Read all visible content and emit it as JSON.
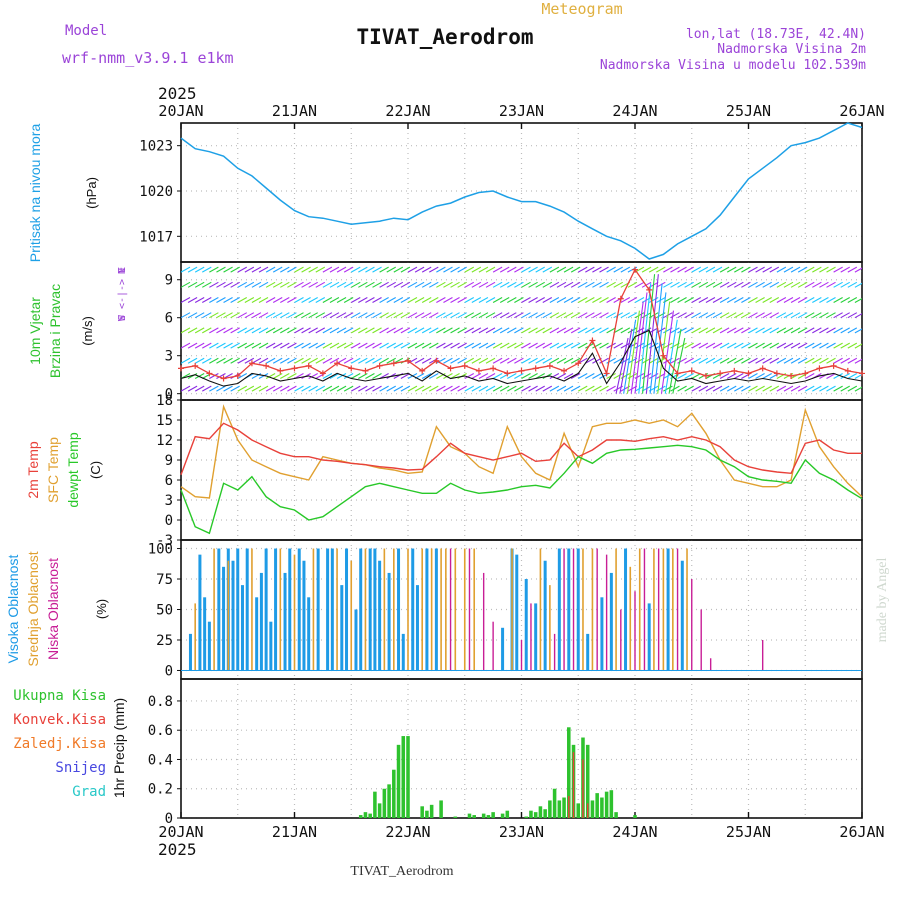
{
  "header": {
    "model_label": "Model",
    "model_name": "wrf-nmm_v3.9.1 e1km",
    "title": "TIVAT_Aerodrom",
    "meteogram": "Meteogram",
    "lonlat": "lon,lat (18.73E, 42.4N)",
    "elevation": "Nadmorska Visina 2m",
    "model_elevation": "Nadmorska Visina u modelu 102.539m",
    "year_top": "2025",
    "year_bottom": "2025",
    "footer_title": "TIVAT_Aerodrom",
    "watermark": "made by Angel"
  },
  "colors": {
    "pressure": "#1ea0e6",
    "temp2m": "#e8413a",
    "sfc_temp": "#e0a030",
    "dewpt": "#28c828",
    "precip": "#2ec22e",
    "high_cloud": "#1e9be6",
    "mid_cloud": "#e0a030",
    "low_cloud": "#c81e96",
    "label_purple": "#9b44d8"
  },
  "chart_data": [
    {
      "type": "line",
      "panel": "pressure",
      "ylabel_lines": [
        "Pritisak na nivou mora",
        "(hPa)"
      ],
      "x_ticks": [
        "20JAN",
        "21JAN",
        "22JAN",
        "23JAN",
        "24JAN",
        "25JAN",
        "26JAN"
      ],
      "y_ticks": [
        1017,
        1020,
        1023
      ],
      "ylim": [
        1015.3,
        1024.5
      ],
      "x_hours": [
        0,
        3,
        6,
        9,
        12,
        15,
        18,
        21,
        24,
        27,
        30,
        33,
        36,
        39,
        42,
        45,
        48,
        51,
        54,
        57,
        60,
        63,
        66,
        69,
        72,
        75,
        78,
        81,
        84,
        87,
        90,
        93,
        96,
        99,
        102,
        105,
        108,
        111,
        114,
        117,
        120,
        123,
        126,
        129,
        132,
        135,
        138,
        141,
        144
      ],
      "values": [
        1023.5,
        1022.8,
        1022.6,
        1022.3,
        1021.5,
        1021.0,
        1020.2,
        1019.4,
        1018.7,
        1018.3,
        1018.2,
        1018.0,
        1017.8,
        1017.9,
        1018.0,
        1018.2,
        1018.1,
        1018.6,
        1019.0,
        1019.2,
        1019.6,
        1019.9,
        1020.0,
        1019.6,
        1019.3,
        1019.3,
        1019.0,
        1018.6,
        1018.0,
        1017.5,
        1017.0,
        1016.7,
        1016.2,
        1015.5,
        1015.8,
        1016.5,
        1017.0,
        1017.5,
        1018.4,
        1019.6,
        1020.8,
        1021.5,
        1022.2,
        1023.0,
        1023.2,
        1023.5,
        1024.0,
        1024.5,
        1024.2
      ]
    },
    {
      "type": "line",
      "panel": "wind",
      "ylabel_lines": [
        "10m Vjetar",
        "Brzina i Pravac",
        "(m/s)"
      ],
      "compass": [
        "N",
        "W <-|-> E",
        "S"
      ],
      "y_ticks": [
        0,
        3,
        6,
        9
      ],
      "ylim": [
        -0.5,
        10.4
      ],
      "x_hours": [
        0,
        3,
        6,
        9,
        12,
        15,
        18,
        21,
        24,
        27,
        30,
        33,
        36,
        39,
        42,
        45,
        48,
        51,
        54,
        57,
        60,
        63,
        66,
        69,
        72,
        75,
        78,
        81,
        84,
        87,
        90,
        93,
        96,
        99,
        102,
        105,
        108,
        111,
        114,
        117,
        120,
        123,
        126,
        129,
        132,
        135,
        138,
        141,
        144
      ],
      "series": [
        {
          "name": "speed",
          "values": [
            1.2,
            1.5,
            1.0,
            0.6,
            0.8,
            1.6,
            1.4,
            1.0,
            1.2,
            1.4,
            1.0,
            1.6,
            1.2,
            1.0,
            1.2,
            1.4,
            1.6,
            1.0,
            1.8,
            1.2,
            1.4,
            1.0,
            1.2,
            0.8,
            1.0,
            1.2,
            1.4,
            1.0,
            1.6,
            3.2,
            0.8,
            2.5,
            4.5,
            5.0,
            2.0,
            1.0,
            1.2,
            0.8,
            1.0,
            1.2,
            1.0,
            1.2,
            1.0,
            0.8,
            1.0,
            1.4,
            1.6,
            1.2,
            1.0
          ]
        },
        {
          "name": "gust",
          "values": [
            2.0,
            2.2,
            1.6,
            1.2,
            1.4,
            2.4,
            2.2,
            1.8,
            2.0,
            2.2,
            1.6,
            2.4,
            2.0,
            1.8,
            2.2,
            2.4,
            2.6,
            1.8,
            2.6,
            2.0,
            2.2,
            1.8,
            2.0,
            1.6,
            1.8,
            2.0,
            2.2,
            1.8,
            2.4,
            4.2,
            1.6,
            7.5,
            9.8,
            8.2,
            3.0,
            1.6,
            1.8,
            1.4,
            1.6,
            1.8,
            1.6,
            2.0,
            1.6,
            1.4,
            1.6,
            2.0,
            2.2,
            1.8,
            1.6
          ]
        }
      ]
    },
    {
      "type": "line",
      "panel": "temperature",
      "ylabel_lines": [
        "2m Temp",
        "SFC Temp",
        "dewpt Temp",
        "(C)"
      ],
      "y_ticks": [
        -3,
        0,
        3,
        6,
        9,
        12,
        15,
        18
      ],
      "ylim": [
        -3,
        18
      ],
      "x_hours": [
        0,
        3,
        6,
        9,
        12,
        15,
        18,
        21,
        24,
        27,
        30,
        33,
        36,
        39,
        42,
        45,
        48,
        51,
        54,
        57,
        60,
        63,
        66,
        69,
        72,
        75,
        78,
        81,
        84,
        87,
        90,
        93,
        96,
        99,
        102,
        105,
        108,
        111,
        114,
        117,
        120,
        123,
        126,
        129,
        132,
        135,
        138,
        141,
        144
      ],
      "series": [
        {
          "name": "2m Temp",
          "values": [
            6.8,
            12.5,
            12.2,
            14.5,
            13.5,
            12.0,
            11.0,
            10.0,
            9.5,
            9.5,
            9.0,
            8.8,
            8.5,
            8.3,
            8.0,
            7.8,
            7.5,
            7.6,
            9.5,
            11.5,
            10.0,
            9.5,
            9.0,
            9.5,
            10.0,
            8.8,
            9.0,
            11.5,
            9.5,
            10.5,
            12.0,
            12.0,
            11.8,
            12.2,
            12.5,
            12.0,
            12.5,
            12.0,
            11.0,
            9.0,
            8.0,
            7.5,
            7.2,
            7.0,
            11.5,
            12.0,
            10.5,
            10.0,
            10.0
          ]
        },
        {
          "name": "SFC Temp",
          "values": [
            5.0,
            3.5,
            3.3,
            17.0,
            12.0,
            9.0,
            8.0,
            7.0,
            6.5,
            6.0,
            9.5,
            9.0,
            8.5,
            8.3,
            7.8,
            7.5,
            7.0,
            7.2,
            14.0,
            11.0,
            10.0,
            8.0,
            7.0,
            14.0,
            9.5,
            7.0,
            6.0,
            13.0,
            8.0,
            14.0,
            14.5,
            14.5,
            15.0,
            14.5,
            15.0,
            14.0,
            16.0,
            13.0,
            9.0,
            6.0,
            5.5,
            5.0,
            5.0,
            6.0,
            16.5,
            11.0,
            8.0,
            5.5,
            3.5
          ]
        },
        {
          "name": "dewpt Temp",
          "values": [
            4.5,
            -1.0,
            -2.0,
            5.5,
            4.5,
            6.5,
            3.5,
            2.0,
            1.5,
            0.0,
            0.5,
            2.0,
            3.5,
            5.0,
            5.5,
            5.0,
            4.5,
            4.0,
            4.0,
            5.5,
            4.5,
            4.0,
            4.2,
            4.5,
            5.0,
            5.2,
            4.8,
            7.0,
            9.5,
            8.5,
            10.0,
            10.5,
            10.6,
            10.8,
            11.0,
            11.2,
            11.0,
            10.5,
            9.0,
            8.0,
            6.5,
            6.0,
            5.8,
            5.5,
            9.0,
            7.0,
            6.0,
            4.5,
            3.2
          ]
        }
      ]
    },
    {
      "type": "bar",
      "panel": "cloud",
      "ylabel_lines": [
        "Visoka Oblacnost",
        "Srednja Oblacnost",
        "Niska Oblacnost",
        "(%)"
      ],
      "y_ticks": [
        0,
        25,
        50,
        75,
        100
      ],
      "ylim": [
        -7,
        107
      ],
      "series": [
        {
          "name": "Visoka Oblacnost",
          "hours": [
            2,
            4,
            5,
            6,
            8,
            9,
            10,
            11,
            12,
            13,
            14,
            16,
            17,
            18,
            19,
            20,
            22,
            23,
            25,
            26,
            27,
            29,
            31,
            32,
            34,
            35,
            37,
            38,
            40,
            41,
            42,
            44,
            46,
            47,
            49,
            50,
            52,
            54,
            68,
            70,
            71,
            73,
            75,
            77,
            80,
            82,
            84,
            86,
            89,
            91,
            94,
            99,
            103,
            106
          ],
          "values": [
            30,
            95,
            60,
            40,
            100,
            85,
            100,
            90,
            100,
            70,
            100,
            60,
            80,
            100,
            40,
            100,
            80,
            100,
            100,
            90,
            60,
            100,
            100,
            100,
            70,
            100,
            50,
            100,
            100,
            100,
            90,
            80,
            100,
            30,
            100,
            70,
            100,
            100,
            35,
            100,
            95,
            75,
            55,
            90,
            100,
            100,
            100,
            30,
            60,
            80,
            100,
            55,
            100,
            90
          ]
        },
        {
          "name": "Srednja Oblacnost",
          "hours": [
            3,
            7,
            10,
            15,
            21,
            24,
            28,
            33,
            36,
            39,
            43,
            45,
            48,
            51,
            53,
            55,
            56,
            58,
            60,
            62,
            70,
            76,
            78,
            85,
            87,
            92,
            95,
            97,
            100,
            102,
            104,
            107
          ],
          "values": [
            55,
            100,
            90,
            100,
            100,
            95,
            100,
            100,
            90,
            100,
            100,
            100,
            100,
            100,
            100,
            100,
            100,
            100,
            100,
            100,
            100,
            100,
            70,
            100,
            100,
            100,
            85,
            100,
            100,
            100,
            100,
            100
          ]
        },
        {
          "name": "Niska Oblacnost",
          "hours": [
            57,
            61,
            64,
            66,
            72,
            74,
            79,
            81,
            83,
            88,
            90,
            93,
            96,
            98,
            101,
            105,
            108,
            110,
            112,
            123
          ],
          "values": [
            100,
            100,
            80,
            40,
            25,
            55,
            30,
            100,
            100,
            100,
            95,
            50,
            65,
            100,
            100,
            100,
            75,
            50,
            10,
            25
          ]
        }
      ]
    },
    {
      "type": "bar",
      "panel": "precip",
      "ylabel_lines": [
        "1hr Precip (mm)"
      ],
      "legend": [
        "Ukupna Kisa",
        "Konvek.Kisa",
        "Zaledj.Kisa",
        "Snijeg",
        "Grad"
      ],
      "x_ticks": [
        "20JAN",
        "21JAN",
        "22JAN",
        "23JAN",
        "24JAN",
        "25JAN",
        "26JAN"
      ],
      "y_ticks": [
        0,
        0.2,
        0.4,
        0.6,
        0.8
      ],
      "ylim": [
        0,
        0.95
      ],
      "series": [
        {
          "name": "Ukupna Kisa",
          "hours": [
            38,
            39,
            40,
            41,
            42,
            43,
            44,
            45,
            46,
            47,
            48,
            51,
            52,
            53,
            55,
            58,
            61,
            62,
            64,
            65,
            66,
            68,
            69,
            73,
            74,
            75,
            76,
            77,
            78,
            79,
            80,
            81,
            82,
            83,
            84,
            85,
            86,
            87,
            88,
            89,
            90,
            91,
            92,
            96
          ],
          "values": [
            0.02,
            0.04,
            0.03,
            0.18,
            0.1,
            0.2,
            0.23,
            0.33,
            0.5,
            0.56,
            0.56,
            0.08,
            0.05,
            0.09,
            0.12,
            0.01,
            0.03,
            0.02,
            0.03,
            0.02,
            0.04,
            0.03,
            0.05,
            0.01,
            0.05,
            0.04,
            0.08,
            0.06,
            0.12,
            0.2,
            0.12,
            0.14,
            0.62,
            0.5,
            0.1,
            0.55,
            0.5,
            0.12,
            0.17,
            0.14,
            0.18,
            0.19,
            0.04,
            0.02
          ]
        },
        {
          "name": "Konvek.Kisa",
          "hours": [
            82,
            83,
            85,
            86
          ],
          "values": [
            0.15,
            0.45,
            0.4,
            0.1
          ]
        }
      ]
    }
  ]
}
